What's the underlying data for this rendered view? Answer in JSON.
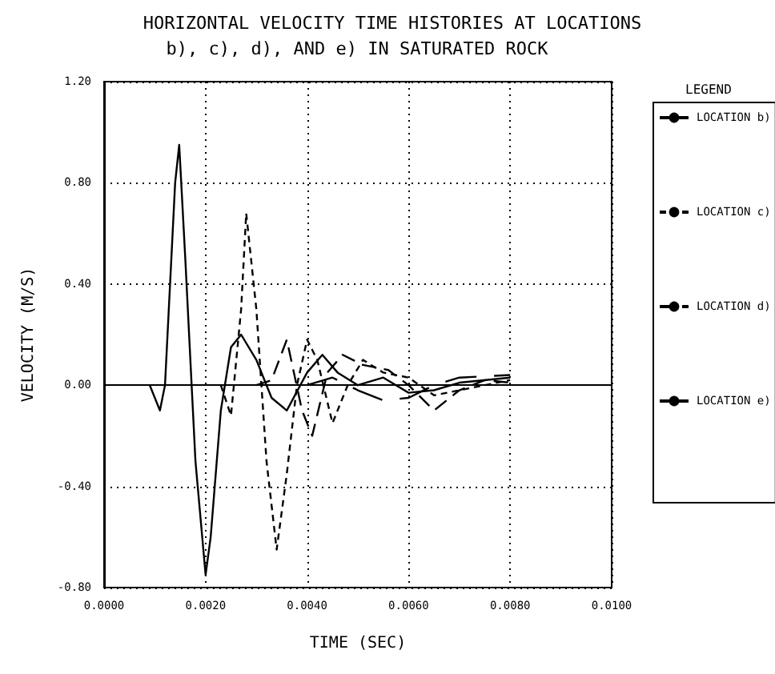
{
  "chart_data": {
    "type": "line",
    "title": "HORIZONTAL VELOCITY TIME HISTORIES AT LOCATIONS",
    "subtitle": "b), c), d), AND e) IN SATURATED ROCK",
    "xlabel": "TIME (SEC)",
    "ylabel": "VELOCITY (M/S)",
    "legend_title": "LEGEND",
    "legend": "right",
    "grid": true,
    "marker": "none",
    "xlim": [
      0,
      0.01
    ],
    "xticks": [
      {
        "value": 0,
        "label": "0.0000"
      },
      {
        "value": 0.002,
        "label": "0.0020"
      },
      {
        "value": 0.004,
        "label": "0.0040"
      },
      {
        "value": 0.006,
        "label": "0.0060"
      },
      {
        "value": 0.008,
        "label": "0.0080"
      },
      {
        "value": 0.01,
        "label": "0.0100"
      }
    ],
    "ylim": [
      -0.8,
      1.2
    ],
    "yticks": [
      {
        "value": -0.8,
        "label": "-0.80"
      },
      {
        "value": -0.4,
        "label": "-0.40"
      },
      {
        "value": 0,
        "label": "0.00"
      },
      {
        "value": 0.4,
        "label": "0.40"
      },
      {
        "value": 0.8,
        "label": "0.80"
      },
      {
        "value": 1.2,
        "label": "1.20"
      }
    ],
    "series": [
      {
        "name": "LOCATION b)",
        "color": "#000000",
        "line_style": "solid",
        "x": [
          0.0009,
          0.0011,
          0.0012,
          0.0014,
          0.00148,
          0.0016,
          0.0018,
          0.002,
          0.0021,
          0.0023,
          0.0025,
          0.0027,
          0.003,
          0.0033,
          0.0036,
          0.004,
          0.0043,
          0.0046,
          0.005,
          0.0055,
          0.006,
          0.0065,
          0.007,
          0.008
        ],
        "values": [
          0,
          -0.1,
          0,
          0.8,
          0.95,
          0.5,
          -0.3,
          -0.75,
          -0.6,
          -0.1,
          0.15,
          0.2,
          0.1,
          -0.05,
          -0.1,
          0.05,
          0.12,
          0.05,
          0,
          0.03,
          -0.03,
          -0.02,
          0.01,
          0.03
        ]
      },
      {
        "name": "LOCATION c)",
        "color": "#000000",
        "line_style": "dotted",
        "x": [
          0.0023,
          0.0025,
          0.0027,
          0.0028,
          0.003,
          0.0032,
          0.0034,
          0.0036,
          0.0038,
          0.004,
          0.0042,
          0.0045,
          0.0048,
          0.0051,
          0.0055,
          0.006,
          0.0065,
          0.007,
          0.008
        ],
        "values": [
          0,
          -0.12,
          0.3,
          0.68,
          0.3,
          -0.3,
          -0.65,
          -0.35,
          0,
          0.18,
          0.1,
          -0.15,
          0,
          0.1,
          0.05,
          0.03,
          -0.04,
          -0.02,
          0.02
        ]
      },
      {
        "name": "LOCATION d)",
        "color": "#000000",
        "line_style": "dashed",
        "x": [
          0.003,
          0.0033,
          0.0036,
          0.0039,
          0.0041,
          0.0044,
          0.0047,
          0.0051,
          0.0056,
          0.006,
          0.0065,
          0.007,
          0.0075,
          0.008
        ],
        "values": [
          0,
          0.02,
          0.18,
          -0.1,
          -0.2,
          0.05,
          0.12,
          0.08,
          0.06,
          0,
          -0.1,
          -0.02,
          0.02,
          0.01
        ]
      },
      {
        "name": "LOCATION e)",
        "color": "#000000",
        "line_style": "dashed",
        "x": [
          0.004,
          0.0045,
          0.005,
          0.0055,
          0.006,
          0.0065,
          0.007,
          0.008
        ],
        "values": [
          0,
          0.03,
          -0.02,
          -0.06,
          -0.05,
          0,
          0.03,
          0.04
        ]
      }
    ]
  }
}
